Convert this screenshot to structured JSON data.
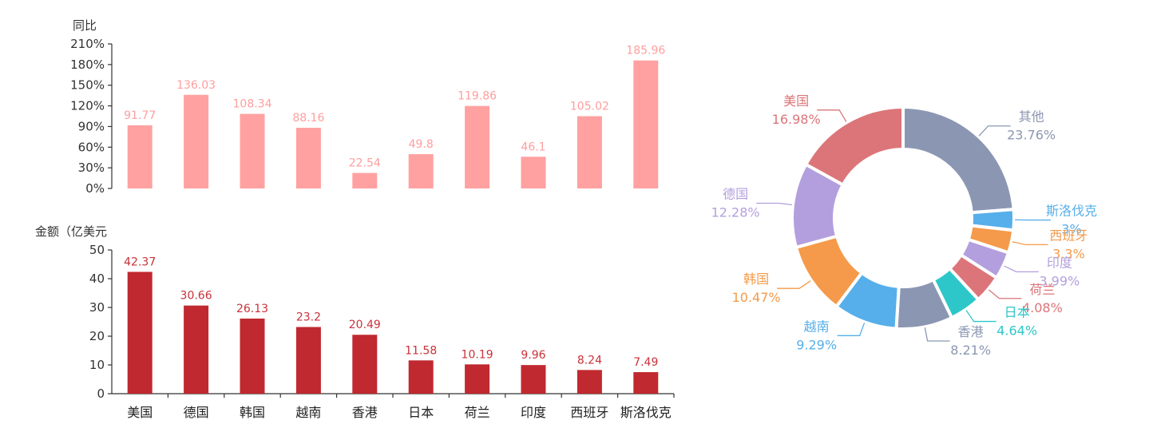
{
  "chart_data": [
    {
      "type": "bar",
      "ylabel": "同比",
      "categories": [
        "美国",
        "德国",
        "韩国",
        "越南",
        "香港",
        "日本",
        "荷兰",
        "印度",
        "西班牙",
        "斯洛伐克"
      ],
      "values": [
        91.77,
        136.03,
        108.34,
        88.16,
        22.54,
        49.8,
        119.86,
        46.1,
        105.02,
        185.96
      ],
      "ylim": [
        0,
        210
      ],
      "yticks": [
        "0%",
        "30%",
        "60%",
        "90%",
        "120%",
        "150%",
        "180%",
        "210%"
      ],
      "color": "#ffa1a1",
      "label_color": "#ff9e9e",
      "grid": false
    },
    {
      "type": "bar",
      "ylabel": "金额（亿美元",
      "categories": [
        "美国",
        "德国",
        "韩国",
        "越南",
        "香港",
        "日本",
        "荷兰",
        "印度",
        "西班牙",
        "斯洛伐克"
      ],
      "values": [
        42.37,
        30.66,
        26.13,
        23.2,
        20.49,
        11.58,
        10.19,
        9.96,
        8.24,
        7.49
      ],
      "ylim": [
        0,
        50
      ],
      "yticks": [
        "0",
        "10",
        "20",
        "30",
        "40",
        "50"
      ],
      "color": "#c0292f",
      "label_color": "#c8323a",
      "grid": false
    },
    {
      "type": "pie",
      "donut": true,
      "slices": [
        {
          "name": "其他",
          "label": "23.76%",
          "value": 23.76,
          "color": "#8b97b2"
        },
        {
          "name": "斯洛伐克",
          "label": "3%",
          "value": 3.0,
          "color": "#56afea"
        },
        {
          "name": "西班牙",
          "label": "3.3%",
          "value": 3.3,
          "color": "#f49a4a"
        },
        {
          "name": "印度",
          "label": "3.99%",
          "value": 3.99,
          "color": "#b39fdd"
        },
        {
          "name": "荷兰",
          "label": "4.08%",
          "value": 4.08,
          "color": "#dc7579"
        },
        {
          "name": "日本",
          "label": "4.64%",
          "value": 4.64,
          "color": "#2ec7c9"
        },
        {
          "name": "香港",
          "label": "8.21%",
          "value": 8.21,
          "color": "#8b97b2"
        },
        {
          "name": "越南",
          "label": "9.29%",
          "value": 9.29,
          "color": "#56afea"
        },
        {
          "name": "韩国",
          "label": "10.47%",
          "value": 10.47,
          "color": "#f49a4a"
        },
        {
          "name": "德国",
          "label": "12.28%",
          "value": 12.28,
          "color": "#b39fdd"
        },
        {
          "name": "美国",
          "label": "16.98%",
          "value": 16.98,
          "color": "#dc7579"
        }
      ]
    }
  ]
}
